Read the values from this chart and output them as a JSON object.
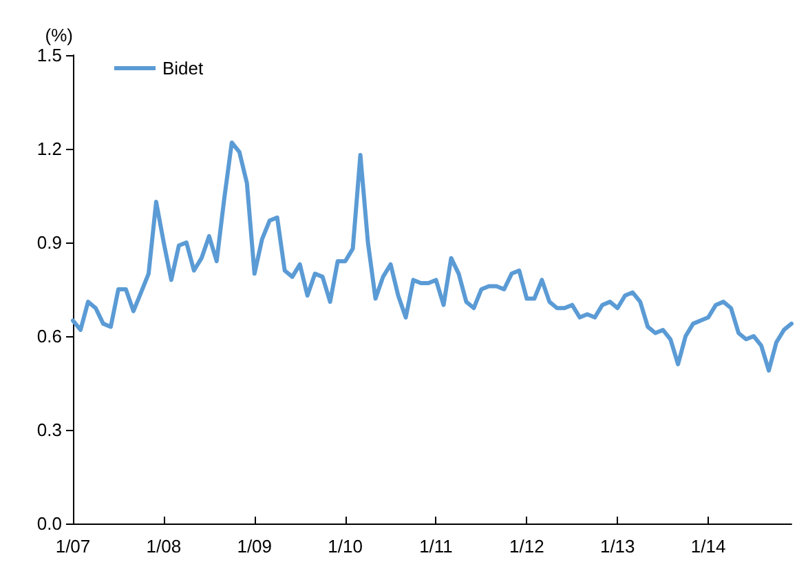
{
  "chart_data": {
    "type": "line",
    "ylabel": "(%)",
    "categories": [
      "1/07",
      null,
      null,
      null,
      null,
      null,
      null,
      null,
      null,
      null,
      null,
      null,
      "1/08",
      null,
      null,
      null,
      null,
      null,
      null,
      null,
      null,
      null,
      null,
      null,
      "1/09",
      null,
      null,
      null,
      null,
      null,
      null,
      null,
      null,
      null,
      null,
      null,
      "1/10",
      null,
      null,
      null,
      null,
      null,
      null,
      null,
      null,
      null,
      null,
      null,
      "1/11",
      null,
      null,
      null,
      null,
      null,
      null,
      null,
      null,
      null,
      null,
      null,
      "1/12",
      null,
      null,
      null,
      null,
      null,
      null,
      null,
      null,
      null,
      null,
      null,
      "1/13",
      null,
      null,
      null,
      null,
      null,
      null,
      null,
      null,
      null,
      null,
      null,
      "1/14",
      null,
      null,
      null,
      null,
      null,
      null,
      null,
      null,
      null,
      null,
      null
    ],
    "series": [
      {
        "name": "Bidet",
        "color": "#5b9bd5",
        "values": [
          0.65,
          0.62,
          0.71,
          0.69,
          0.64,
          0.63,
          0.75,
          0.75,
          0.68,
          0.74,
          0.8,
          1.03,
          0.9,
          0.78,
          0.89,
          0.9,
          0.81,
          0.85,
          0.92,
          0.84,
          1.04,
          1.22,
          1.19,
          1.09,
          0.8,
          0.91,
          0.97,
          0.98,
          0.81,
          0.79,
          0.83,
          0.73,
          0.8,
          0.79,
          0.71,
          0.84,
          0.84,
          0.88,
          1.18,
          0.9,
          0.72,
          0.79,
          0.83,
          0.73,
          0.66,
          0.78,
          0.77,
          0.77,
          0.78,
          0.7,
          0.85,
          0.8,
          0.71,
          0.69,
          0.75,
          0.76,
          0.76,
          0.75,
          0.8,
          0.81,
          0.72,
          0.72,
          0.78,
          0.71,
          0.69,
          0.69,
          0.7,
          0.66,
          0.67,
          0.66,
          0.7,
          0.71,
          0.69,
          0.73,
          0.74,
          0.71,
          0.63,
          0.61,
          0.62,
          0.59,
          0.51,
          0.6,
          0.64,
          0.65,
          0.66,
          0.7,
          0.71,
          0.69,
          0.61,
          0.59,
          0.6,
          0.57,
          0.49,
          0.58,
          0.62,
          0.64
        ]
      }
    ],
    "ylim": [
      0,
      1.5
    ],
    "yticks": [
      {
        "value": 0,
        "label": "0.0"
      },
      0.3,
      0.6,
      0.9,
      1.2,
      1.5
    ],
    "grid": false,
    "legend": "top left",
    "marker": "none",
    "line_style": "solid"
  }
}
